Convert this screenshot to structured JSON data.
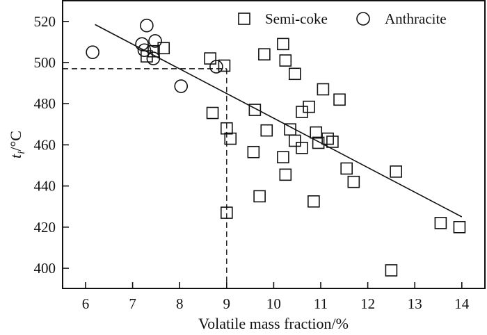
{
  "chart_data": {
    "type": "scatter",
    "title": "",
    "xlabel": "Volatile mass fraction/%",
    "ylabel": {
      "main": "t",
      "sub": "i",
      "unit": "/°C"
    },
    "xlim": [
      5.5,
      14.5
    ],
    "ylim": [
      390,
      529
    ],
    "xticks": [
      6,
      7,
      8,
      9,
      10,
      11,
      12,
      13,
      14
    ],
    "yticks": [
      400,
      420,
      440,
      460,
      480,
      500,
      520
    ],
    "grid": false,
    "legend": {
      "placement": "top-right",
      "entries": [
        {
          "label": "Semi-coke",
          "marker": "square"
        },
        {
          "label": "Anthracite",
          "marker": "circle"
        }
      ]
    },
    "series": [
      {
        "name": "Semi-coke",
        "marker": "square",
        "points": [
          [
            7.3,
            503
          ],
          [
            7.45,
            505.5
          ],
          [
            7.66,
            507
          ],
          [
            8.65,
            502
          ],
          [
            8.95,
            498.5
          ],
          [
            8.7,
            475.5
          ],
          [
            9.0,
            468
          ],
          [
            9.08,
            463
          ],
          [
            9.0,
            427
          ],
          [
            9.6,
            477
          ],
          [
            9.57,
            456.5
          ],
          [
            9.7,
            435
          ],
          [
            9.8,
            504
          ],
          [
            9.85,
            467
          ],
          [
            10.2,
            509
          ],
          [
            10.25,
            501
          ],
          [
            10.45,
            494.5
          ],
          [
            10.2,
            454
          ],
          [
            10.25,
            445.5
          ],
          [
            10.35,
            467.5
          ],
          [
            10.45,
            462
          ],
          [
            10.6,
            458.5
          ],
          [
            10.6,
            476
          ],
          [
            10.75,
            478.5
          ],
          [
            10.85,
            432.5
          ],
          [
            10.9,
            466
          ],
          [
            10.95,
            461
          ],
          [
            11.05,
            487
          ],
          [
            11.15,
            463
          ],
          [
            11.25,
            461.5
          ],
          [
            11.4,
            482
          ],
          [
            11.55,
            448.5
          ],
          [
            11.7,
            442
          ],
          [
            12.5,
            399
          ],
          [
            12.6,
            447
          ],
          [
            13.55,
            422
          ],
          [
            13.95,
            420
          ]
        ]
      },
      {
        "name": "Anthracite",
        "marker": "circle",
        "points": [
          [
            6.15,
            505
          ],
          [
            7.2,
            509
          ],
          [
            7.3,
            518
          ],
          [
            7.25,
            506
          ],
          [
            7.48,
            510.5
          ],
          [
            7.44,
            502
          ],
          [
            8.03,
            488.5
          ],
          [
            8.78,
            498
          ]
        ]
      }
    ],
    "fit_line": {
      "x": [
        6.2,
        14.0
      ],
      "y": [
        518.5,
        425
      ]
    },
    "reference_lines": {
      "x": 9,
      "y": 497
    }
  }
}
